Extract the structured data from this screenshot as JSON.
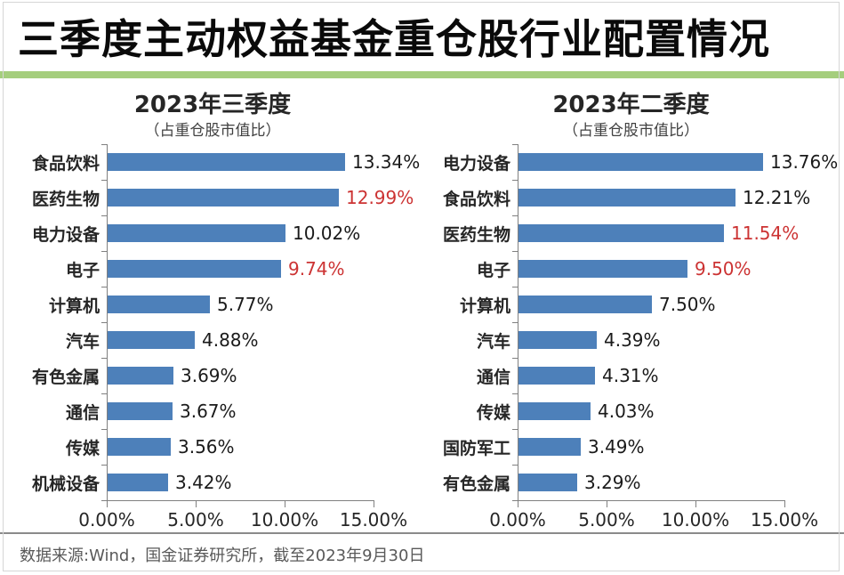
{
  "page": {
    "title": "三季度主动权益基金重仓股行业配置情况",
    "footer": "数据来源:Wind，国金证券研究所，截至2023年9月30日",
    "colors": {
      "accent_green": "#a5ce7d",
      "bar_blue": "#4d80ba",
      "highlight_red": "#cc3333",
      "axis_gray": "#808080"
    }
  },
  "chart_data": [
    {
      "type": "bar",
      "orientation": "horizontal",
      "title": "2023年三季度",
      "subtitle": "（占重仓股市值比）",
      "xlim": [
        0,
        15
      ],
      "x_ticks": [
        "0.00%",
        "5.00%",
        "10.00%",
        "15.00%"
      ],
      "grid": false,
      "legend": "none",
      "categories": [
        "食品饮料",
        "医药生物",
        "电力设备",
        "电子",
        "计算机",
        "汽车",
        "有色金属",
        "通信",
        "传媒",
        "机械设备"
      ],
      "values": [
        13.34,
        12.99,
        10.02,
        9.74,
        5.77,
        4.88,
        3.69,
        3.67,
        3.56,
        3.42
      ],
      "rows": [
        {
          "label": "食品饮料",
          "value": 13.34,
          "display": "13.34%",
          "highlight": false
        },
        {
          "label": "医药生物",
          "value": 12.99,
          "display": "12.99%",
          "highlight": true
        },
        {
          "label": "电力设备",
          "value": 10.02,
          "display": "10.02%",
          "highlight": false
        },
        {
          "label": "电子",
          "value": 9.74,
          "display": "9.74%",
          "highlight": true
        },
        {
          "label": "计算机",
          "value": 5.77,
          "display": "5.77%",
          "highlight": false
        },
        {
          "label": "汽车",
          "value": 4.88,
          "display": "4.88%",
          "highlight": false
        },
        {
          "label": "有色金属",
          "value": 3.69,
          "display": "3.69%",
          "highlight": false
        },
        {
          "label": "通信",
          "value": 3.67,
          "display": "3.67%",
          "highlight": false
        },
        {
          "label": "传媒",
          "value": 3.56,
          "display": "3.56%",
          "highlight": false
        },
        {
          "label": "机械设备",
          "value": 3.42,
          "display": "3.42%",
          "highlight": false
        }
      ]
    },
    {
      "type": "bar",
      "orientation": "horizontal",
      "title": "2023年二季度",
      "subtitle": "（占重仓股市值比）",
      "xlim": [
        0,
        15
      ],
      "x_ticks": [
        "0.00%",
        "5.00%",
        "10.00%",
        "15.00%"
      ],
      "grid": false,
      "legend": "none",
      "categories": [
        "电力设备",
        "食品饮料",
        "医药生物",
        "电子",
        "计算机",
        "汽车",
        "通信",
        "传媒",
        "国防军工",
        "有色金属"
      ],
      "values": [
        13.76,
        12.21,
        11.54,
        9.5,
        7.5,
        4.39,
        4.31,
        4.03,
        3.49,
        3.29
      ],
      "rows": [
        {
          "label": "电力设备",
          "value": 13.76,
          "display": "13.76%",
          "highlight": false
        },
        {
          "label": "食品饮料",
          "value": 12.21,
          "display": "12.21%",
          "highlight": false
        },
        {
          "label": "医药生物",
          "value": 11.54,
          "display": "11.54%",
          "highlight": true
        },
        {
          "label": "电子",
          "value": 9.5,
          "display": "9.50%",
          "highlight": true
        },
        {
          "label": "计算机",
          "value": 7.5,
          "display": "7.50%",
          "highlight": false
        },
        {
          "label": "汽车",
          "value": 4.39,
          "display": "4.39%",
          "highlight": false
        },
        {
          "label": "通信",
          "value": 4.31,
          "display": "4.31%",
          "highlight": false
        },
        {
          "label": "传媒",
          "value": 4.03,
          "display": "4.03%",
          "highlight": false
        },
        {
          "label": "国防军工",
          "value": 3.49,
          "display": "3.49%",
          "highlight": false
        },
        {
          "label": "有色金属",
          "value": 3.29,
          "display": "3.29%",
          "highlight": false
        }
      ]
    }
  ]
}
